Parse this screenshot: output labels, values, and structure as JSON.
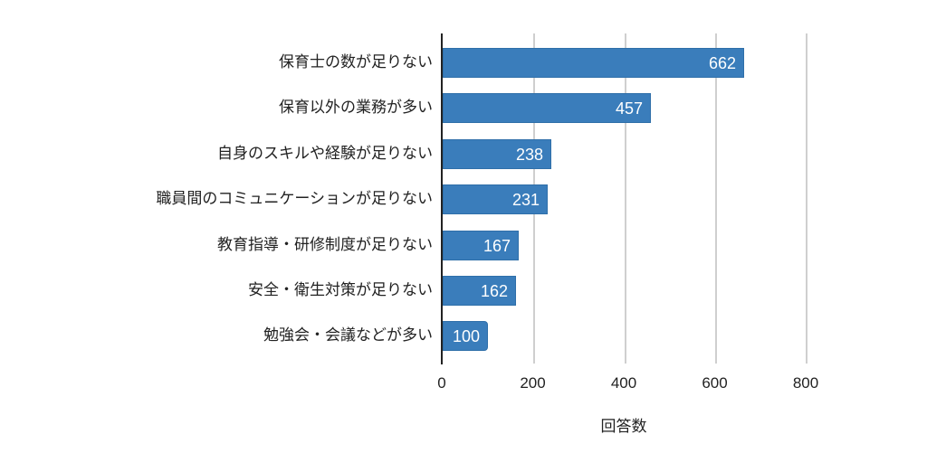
{
  "chart_data": {
    "type": "bar",
    "orientation": "horizontal",
    "title": "",
    "xlabel": "回答数",
    "ylabel": "",
    "xlim": [
      0,
      800
    ],
    "x_ticks": [
      "0",
      "200",
      "400",
      "600",
      "800"
    ],
    "grid": true,
    "legend": null,
    "bar_color": "#3a7dbb",
    "categories": [
      "保育士の数が足りない",
      "保育以外の業務が多い",
      "自身のスキルや経験が足りない",
      "職員間のコミュニケーションが足りない",
      "教育指導・研修制度が足りない",
      "安全・衛生対策が足りない",
      "勉強会・会議などが多い"
    ],
    "values": [
      662,
      457,
      238,
      231,
      167,
      162,
      100
    ],
    "value_labels": [
      "662",
      "457",
      "238",
      "231",
      "167",
      "162",
      "100"
    ]
  }
}
